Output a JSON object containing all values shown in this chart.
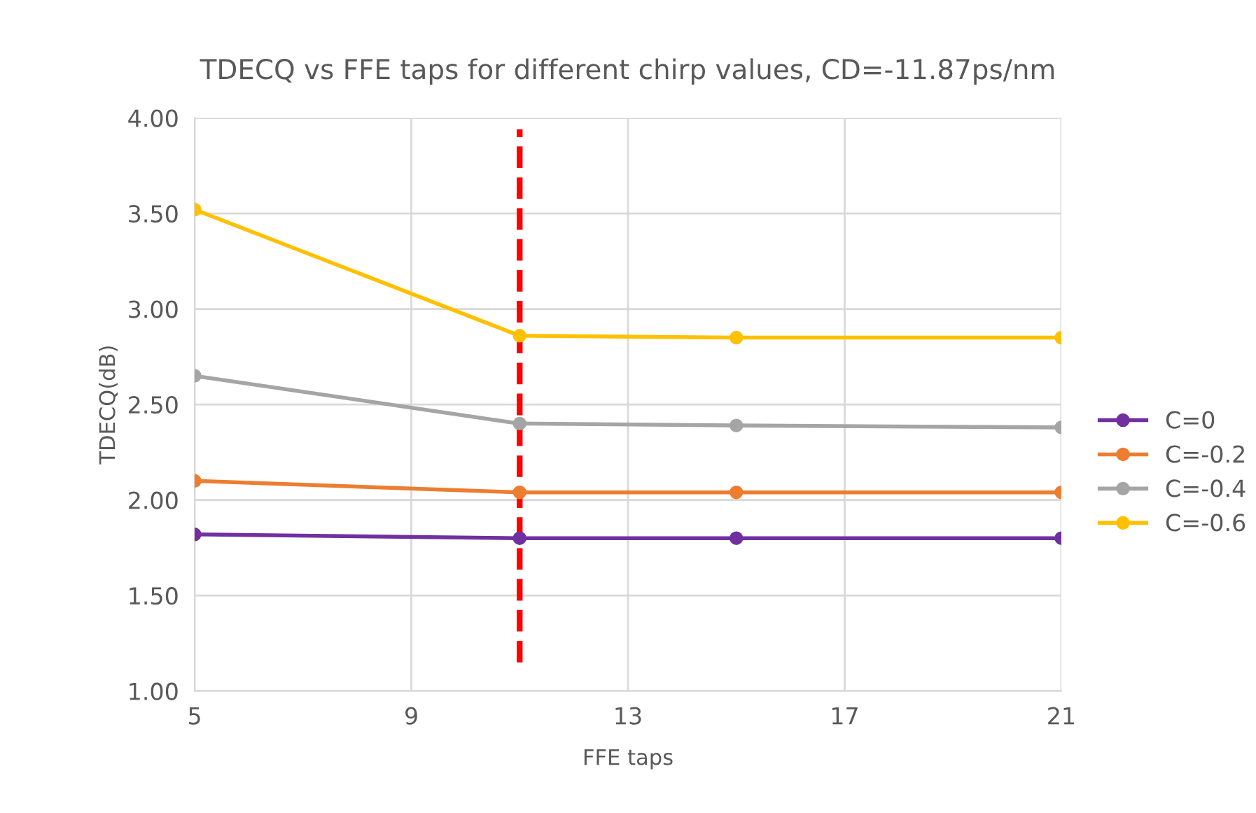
{
  "chart_data": {
    "type": "line",
    "title": "TDECQ vs FFE taps for different chirp values, CD=-11.87ps/nm",
    "xlabel": "FFE taps",
    "ylabel": "TDECQ(dB)",
    "x": [
      5,
      11,
      15,
      21
    ],
    "series": [
      {
        "name": "C=0",
        "color": "#7030a0",
        "values": [
          1.82,
          1.8,
          1.8,
          1.8
        ]
      },
      {
        "name": "C=-0.2",
        "color": "#ed7d31",
        "values": [
          2.1,
          2.04,
          2.04,
          2.04
        ]
      },
      {
        "name": "C=-0.4",
        "color": "#a5a5a5",
        "values": [
          2.65,
          2.4,
          2.39,
          2.38
        ]
      },
      {
        "name": "C=-0.6",
        "color": "#ffc000",
        "values": [
          3.52,
          2.86,
          2.85,
          2.85
        ]
      }
    ],
    "xlim": [
      5,
      21
    ],
    "xticks": [
      5,
      9,
      13,
      17,
      21
    ],
    "ylim": [
      1.0,
      4.0
    ],
    "yticks": [
      {
        "value": 1.0,
        "label": "1.00"
      },
      {
        "value": 1.5,
        "label": "1.50"
      },
      {
        "value": 2.0,
        "label": "2.00"
      },
      {
        "value": 2.5,
        "label": "2.50"
      },
      {
        "value": 3.0,
        "label": "3.00"
      },
      {
        "value": 3.5,
        "label": "3.50"
      },
      {
        "value": 4.0,
        "label": "4.00"
      }
    ],
    "ref_lines": [
      {
        "axis": "x",
        "value": 11,
        "label": null,
        "color": "#ff0000",
        "line_style": "dashed"
      }
    ],
    "grid": true,
    "legend": "right",
    "marker": "circle",
    "line_style": "solid"
  }
}
